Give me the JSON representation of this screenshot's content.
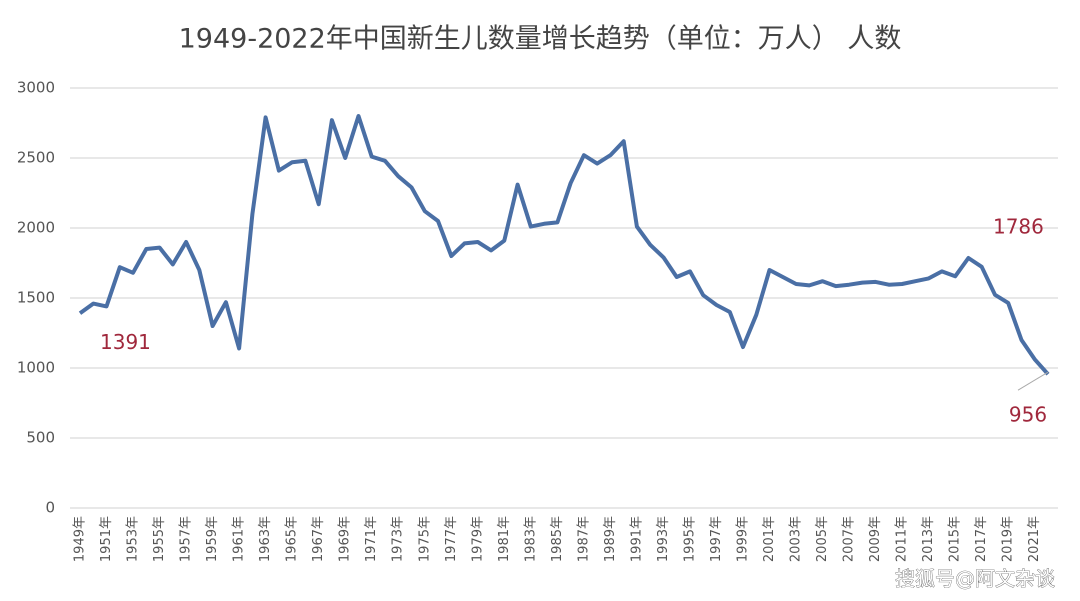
{
  "chart_data": {
    "type": "line",
    "title": "1949-2022年中国新生儿数量增长趋势（单位：万人） 人数",
    "categories": [
      "1949年",
      null,
      "1951年",
      null,
      "1953年",
      null,
      "1955年",
      null,
      "1957年",
      null,
      "1959年",
      null,
      "1961年",
      null,
      "1963年",
      null,
      "1965年",
      null,
      "1967年",
      null,
      "1969年",
      null,
      "1971年",
      null,
      "1973年",
      null,
      "1975年",
      null,
      "1977年",
      null,
      "1979年",
      null,
      "1981年",
      null,
      "1983年",
      null,
      "1985年",
      null,
      "1987年",
      null,
      "1989年",
      null,
      "1991年",
      null,
      "1993年",
      null,
      "1995年",
      null,
      "1997年",
      null,
      "1999年",
      null,
      "2001年",
      null,
      "2003年",
      null,
      "2005年",
      null,
      "2007年",
      null,
      "2009年",
      null,
      "2011年",
      null,
      "2013年",
      null,
      "2015年",
      null,
      "2017年",
      null,
      "2019年",
      null,
      "2021年",
      null
    ],
    "series": [
      {
        "name": "人数",
        "color": "#4a6fa5",
        "values": [
          1391,
          1460,
          1440,
          1720,
          1680,
          1850,
          1860,
          1740,
          1900,
          1700,
          1300,
          1470,
          1140,
          2100,
          2790,
          2410,
          2470,
          2480,
          2170,
          2770,
          2500,
          2800,
          2510,
          2480,
          2370,
          2290,
          2120,
          2050,
          1800,
          1890,
          1900,
          1840,
          1910,
          2310,
          2010,
          2030,
          2040,
          2320,
          2520,
          2460,
          2520,
          2620,
          2010,
          1880,
          1790,
          1650,
          1690,
          1520,
          1450,
          1400,
          1150,
          1380,
          1700,
          1650,
          1600,
          1590,
          1620,
          1585,
          1595,
          1610,
          1615,
          1595,
          1600,
          1620,
          1640,
          1690,
          1655,
          1786,
          1723,
          1523,
          1465,
          1200,
          1062,
          956
        ],
        "value_labels": [
          "1391",
          null,
          null,
          null,
          null,
          null,
          null,
          null,
          null,
          null,
          null,
          null,
          null,
          null,
          null,
          null,
          null,
          null,
          null,
          null,
          null,
          null,
          null,
          null,
          null,
          null,
          null,
          null,
          null,
          null,
          null,
          null,
          null,
          null,
          null,
          null,
          null,
          null,
          null,
          null,
          null,
          null,
          null,
          null,
          null,
          null,
          null,
          null,
          null,
          null,
          null,
          null,
          null,
          null,
          null,
          null,
          null,
          null,
          null,
          null,
          null,
          null,
          null,
          null,
          null,
          null,
          null,
          "1786",
          null,
          null,
          null,
          null,
          null,
          "956"
        ]
      }
    ],
    "ylim": [
      0,
      3000
    ],
    "yticks": [
      0,
      500,
      1000,
      1500,
      2000,
      2500,
      3000
    ],
    "grid": true,
    "watermark": "搜狐号@阿文杂谈"
  }
}
